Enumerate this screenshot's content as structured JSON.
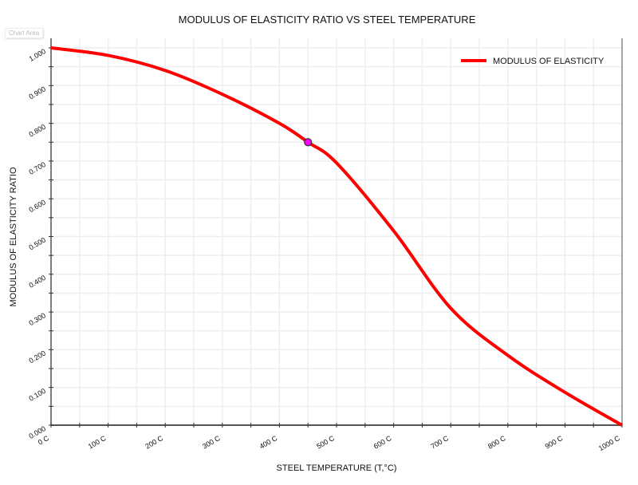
{
  "chart_area_label": "Chart Area",
  "chart_data": {
    "type": "line",
    "title": "MODULUS OF ELASTICITY RATIO VS STEEL TEMPERATURE",
    "xlabel": "STEEL TEMPERATURE (T,°C)",
    "ylabel": "MODULUS OF ELASTICITY RATIO",
    "xlim": [
      0,
      1000
    ],
    "ylim": [
      0,
      1
    ],
    "grid": true,
    "legend_position": "top-right",
    "x_tick_labels": [
      "0 C",
      "100 C",
      "200 C",
      "300 C",
      "400 C",
      "500 C",
      "600 C",
      "700 C",
      "800 C",
      "900 C",
      "1000 C"
    ],
    "y_tick_labels": [
      "0.000",
      "0.100",
      "0.200",
      "0.300",
      "0.400",
      "0.500",
      "0.600",
      "0.700",
      "0.800",
      "0.900",
      "1.000"
    ],
    "series": [
      {
        "name": "MODULUS OF ELASTICITY",
        "color": "#ff0000",
        "x": [
          0,
          100,
          200,
          300,
          400,
          450,
          500,
          600,
          700,
          800,
          900,
          1000
        ],
        "y": [
          1.0,
          0.98,
          0.94,
          0.877,
          0.8,
          0.75,
          0.695,
          0.515,
          0.31,
          0.185,
          0.087,
          0.0
        ]
      }
    ],
    "highlight_point": {
      "x": 450,
      "y": 0.75,
      "color": "#ff00ff"
    }
  }
}
